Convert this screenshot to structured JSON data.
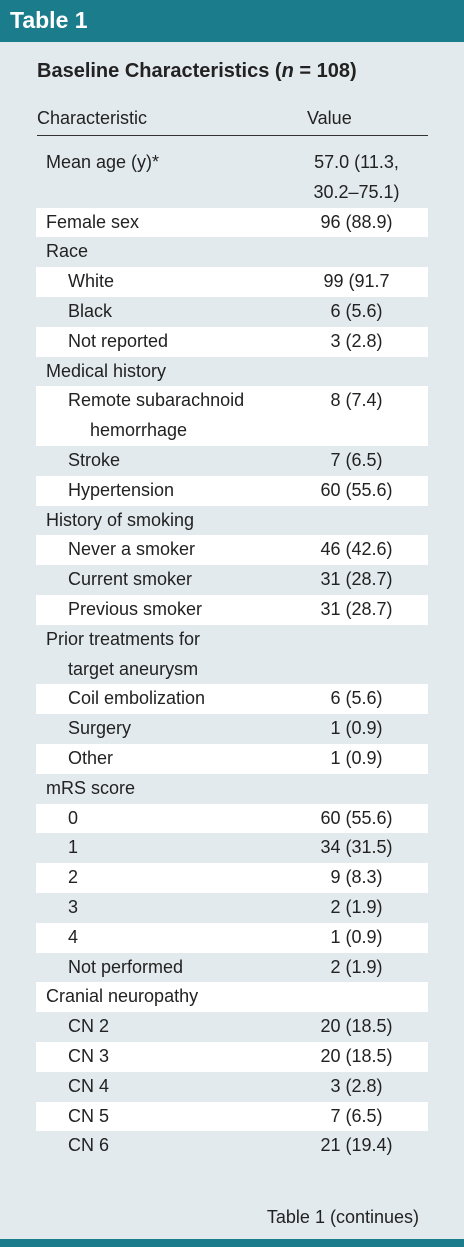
{
  "header": {
    "title": "Table 1"
  },
  "table": {
    "title_parts": [
      "Baseline Characteristics (",
      "n",
      " = 108)"
    ],
    "columns": [
      "Characteristic",
      "Value"
    ],
    "rows": [
      {
        "label": "Mean age (y)*",
        "value": "57.0 (11.3, 30.2–75.1)"
      },
      {
        "label": "Female sex",
        "value": "96 (88.9)"
      },
      {
        "label": "Race",
        "items": [
          {
            "label": "White",
            "value": "99 (91.7"
          },
          {
            "label": "Black",
            "value": "6 (5.6)"
          },
          {
            "label": "Not reported",
            "value": "3 (2.8)"
          }
        ]
      },
      {
        "label": "Medical history",
        "items": [
          {
            "label": "Remote subarachnoid hemorrhage",
            "value": "8 (7.4)"
          },
          {
            "label": "Stroke",
            "value": "7 (6.5)"
          },
          {
            "label": "Hypertension",
            "value": "60 (55.6)"
          }
        ]
      },
      {
        "label": "History of smoking",
        "items": [
          {
            "label": "Never a smoker",
            "value": "46 (42.6)"
          },
          {
            "label": "Current smoker",
            "value": "31 (28.7)"
          },
          {
            "label": "Previous smoker",
            "value": "31 (28.7)"
          }
        ]
      },
      {
        "label": "Prior treatments for target aneurysm",
        "items": [
          {
            "label": "Coil embolization",
            "value": "6 (5.6)"
          },
          {
            "label": "Surgery",
            "value": "1 (0.9)"
          },
          {
            "label": "Other",
            "value": "1 (0.9)"
          }
        ]
      },
      {
        "label": "mRS score",
        "items": [
          {
            "label": "0",
            "value": "60 (55.6)"
          },
          {
            "label": "1",
            "value": "34 (31.5)"
          },
          {
            "label": "2",
            "value": "9 (8.3)"
          },
          {
            "label": "3",
            "value": "2 (1.9)"
          },
          {
            "label": "4",
            "value": "1 (0.9)"
          },
          {
            "label": "Not performed",
            "value": "2 (1.9)"
          }
        ]
      },
      {
        "label": "Cranial neuropathy",
        "items": [
          {
            "label": "CN 2",
            "value": "20 (18.5)"
          },
          {
            "label": "CN 3",
            "value": "20 (18.5)"
          },
          {
            "label": "CN 4",
            "value": "3 (2.8)"
          },
          {
            "label": "CN 5",
            "value": "7 (6.5)"
          },
          {
            "label": "CN 6",
            "value": "21 (19.4)"
          }
        ]
      }
    ]
  },
  "footer": {
    "note": "Table 1 (continues)"
  }
}
